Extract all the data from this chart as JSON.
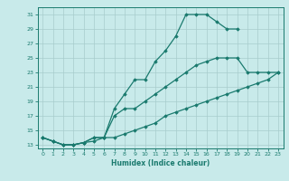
{
  "line1_x": [
    0,
    1,
    2,
    3,
    4,
    5,
    6,
    7,
    8,
    9,
    10,
    11,
    12,
    13,
    14,
    15,
    16,
    17,
    18,
    19
  ],
  "line1_y": [
    14,
    13.5,
    13,
    13,
    13.3,
    14,
    14,
    18,
    20,
    22,
    22,
    24.5,
    26,
    28,
    31,
    31,
    31,
    30,
    29,
    29
  ],
  "line2_x": [
    0,
    1,
    2,
    3,
    4,
    5,
    6,
    7,
    8,
    9,
    10,
    11,
    12,
    13,
    14,
    15,
    16,
    17,
    18,
    19,
    20,
    21,
    22,
    23
  ],
  "line2_y": [
    14,
    13.5,
    13,
    13,
    13.3,
    14,
    14,
    17,
    18,
    18,
    19,
    20,
    21,
    22,
    23,
    24,
    24.5,
    25,
    25,
    25,
    23,
    23,
    23,
    23
  ],
  "line3_x": [
    0,
    1,
    2,
    3,
    4,
    5,
    6,
    7,
    8,
    9,
    10,
    11,
    12,
    13,
    14,
    15,
    16,
    17,
    18,
    19,
    20,
    21,
    22,
    23
  ],
  "line3_y": [
    14,
    13.5,
    13,
    13,
    13.3,
    13.5,
    14,
    14,
    14.5,
    15,
    15.5,
    16,
    17,
    17.5,
    18,
    18.5,
    19,
    19.5,
    20,
    20.5,
    21,
    21.5,
    22,
    23
  ],
  "color": "#1a7a6e",
  "bg_color": "#c8eaea",
  "grid_color": "#a8cccc",
  "xlabel": "Humidex (Indice chaleur)",
  "xlim": [
    -0.5,
    23.5
  ],
  "ylim": [
    12.5,
    32
  ],
  "yticks": [
    13,
    15,
    17,
    19,
    21,
    23,
    25,
    27,
    29,
    31
  ],
  "xticks": [
    0,
    1,
    2,
    3,
    4,
    5,
    6,
    7,
    8,
    9,
    10,
    11,
    12,
    13,
    14,
    15,
    16,
    17,
    18,
    19,
    20,
    21,
    22,
    23
  ],
  "marker": "D",
  "markersize": 1.8,
  "linewidth": 0.9,
  "tick_fontsize": 4.5,
  "xlabel_fontsize": 5.5
}
